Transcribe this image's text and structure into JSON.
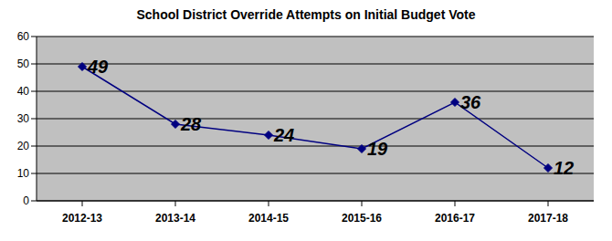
{
  "chart_data": {
    "type": "line",
    "title": "School District Override Attempts on Initial Budget Vote",
    "categories": [
      "2012-13",
      "2013-14",
      "2014-15",
      "2015-16",
      "2016-17",
      "2017-18"
    ],
    "values": [
      49,
      28,
      24,
      19,
      36,
      12
    ],
    "color": "#000080",
    "ylim": [
      0,
      60
    ],
    "yticks": [
      0,
      10,
      20,
      30,
      40,
      50,
      60
    ],
    "grid": true,
    "data_labels": true,
    "marker": "diamond"
  }
}
